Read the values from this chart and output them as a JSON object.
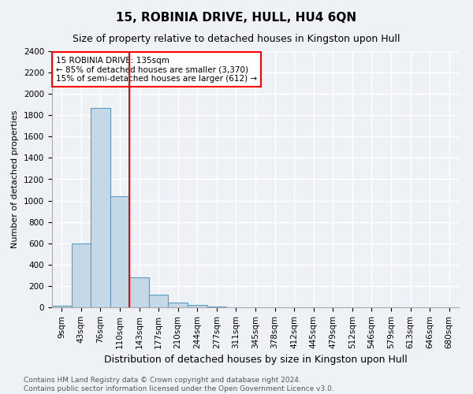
{
  "title": "15, ROBINIA DRIVE, HULL, HU4 6QN",
  "subtitle": "Size of property relative to detached houses in Kingston upon Hull",
  "xlabel": "Distribution of detached houses by size in Kingston upon Hull",
  "ylabel": "Number of detached properties",
  "bar_labels": [
    "9sqm",
    "43sqm",
    "76sqm",
    "110sqm",
    "143sqm",
    "177sqm",
    "210sqm",
    "244sqm",
    "277sqm",
    "311sqm",
    "345sqm",
    "378sqm",
    "412sqm",
    "445sqm",
    "479sqm",
    "512sqm",
    "546sqm",
    "579sqm",
    "613sqm",
    "646sqm",
    "680sqm"
  ],
  "bar_values": [
    15,
    600,
    1870,
    1040,
    280,
    120,
    42,
    20,
    10,
    0,
    0,
    0,
    0,
    0,
    0,
    0,
    0,
    0,
    0,
    0,
    0
  ],
  "bar_color": "#c5d8e8",
  "bar_edge_color": "#5a9cbf",
  "vline_bin": 4,
  "vline_color": "red",
  "annotation_text": "15 ROBINIA DRIVE: 135sqm\n← 85% of detached houses are smaller (3,370)\n15% of semi-detached houses are larger (612) →",
  "annotation_box_color": "white",
  "annotation_box_edge": "red",
  "ylim": [
    0,
    2400
  ],
  "yticks": [
    0,
    200,
    400,
    600,
    800,
    1000,
    1200,
    1400,
    1600,
    1800,
    2000,
    2200,
    2400
  ],
  "footnote": "Contains HM Land Registry data © Crown copyright and database right 2024.\nContains public sector information licensed under the Open Government Licence v3.0.",
  "background_color": "#eef2f7",
  "grid_color": "white",
  "title_fontsize": 11,
  "subtitle_fontsize": 9,
  "xlabel_fontsize": 9,
  "ylabel_fontsize": 8,
  "tick_fontsize": 7.5,
  "footnote_fontsize": 6.5,
  "footnote_color": "#555555"
}
